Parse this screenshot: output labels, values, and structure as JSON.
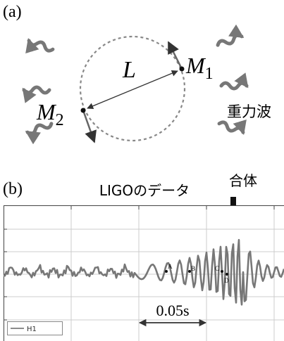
{
  "panel_a": {
    "label": "(a)",
    "distance": "L",
    "mass_1": {
      "symbol": "M",
      "subscript": "1"
    },
    "mass_2": {
      "symbol": "M",
      "subscript": "2"
    },
    "wave_label": "重力波"
  },
  "panel_b": {
    "label": "(b)",
    "title": "LIGOのデータ",
    "merger": "合体",
    "points": [
      "A",
      "B",
      "C",
      "D"
    ],
    "interval": "0.05s",
    "legend": "H1"
  }
}
